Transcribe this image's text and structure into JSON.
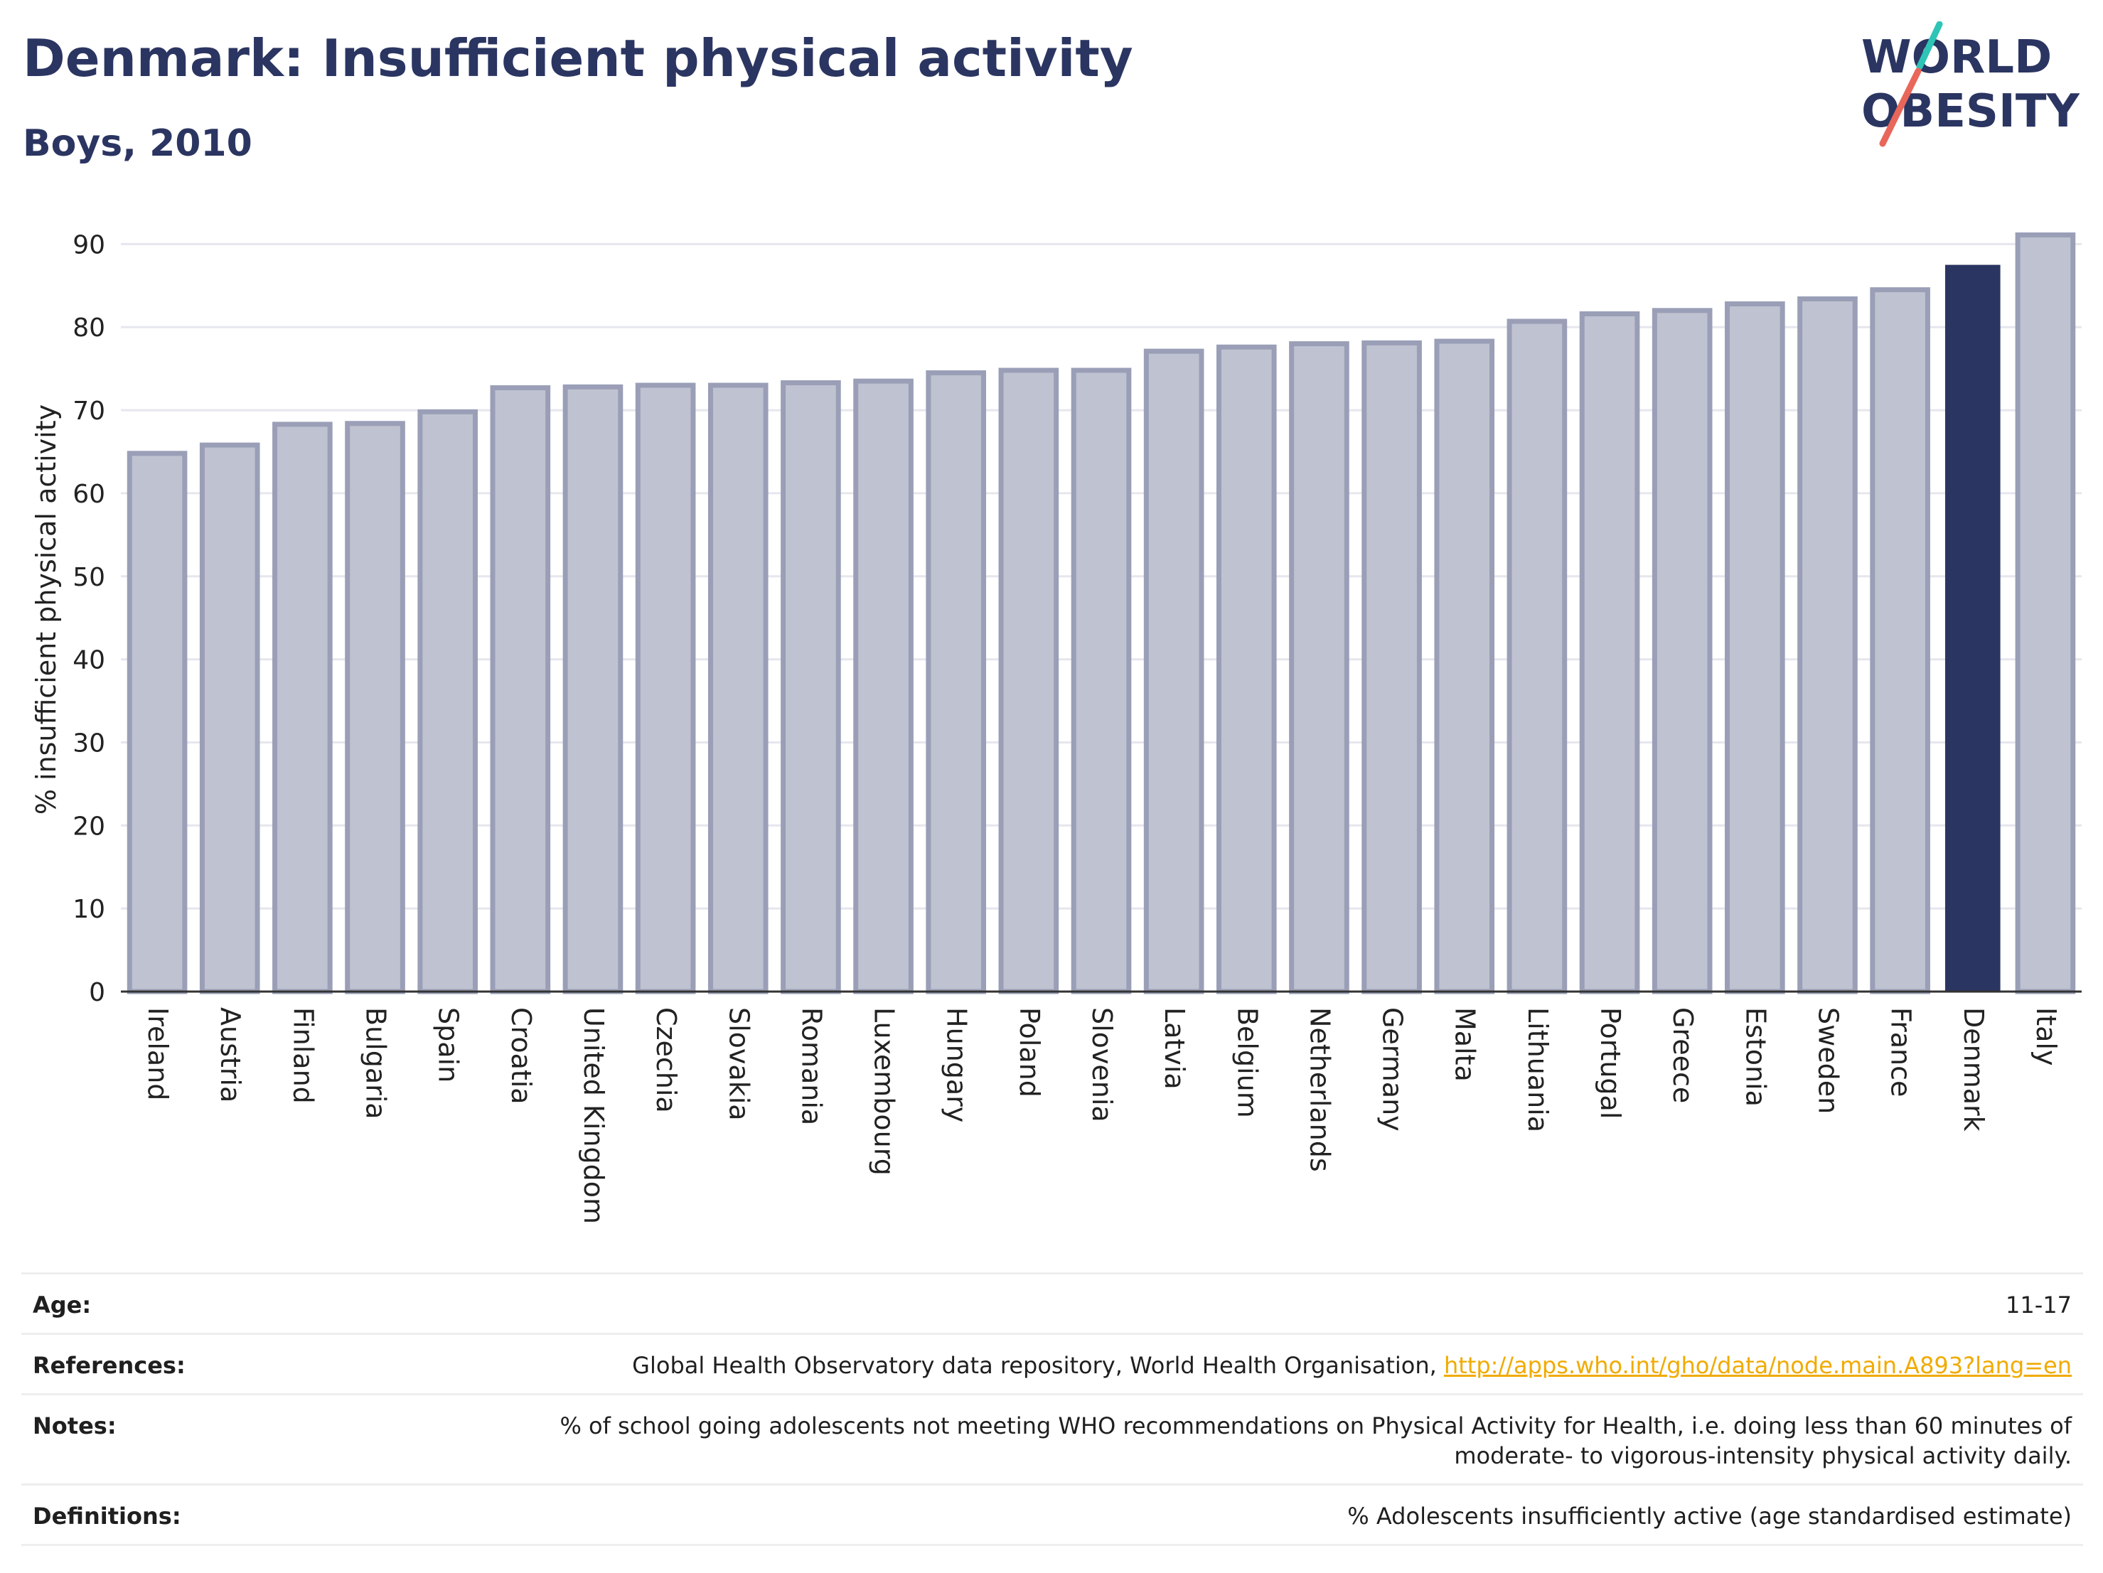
{
  "header": {
    "title": "Denmark: Insufficient physical activity",
    "subtitle": "Boys, 2010"
  },
  "logo": {
    "line1": "WORLD",
    "line2": "OBESITY"
  },
  "chart_data": {
    "type": "bar",
    "title": "Denmark: Insufficient physical activity",
    "subtitle": "Boys, 2010",
    "xlabel": "",
    "ylabel": "% insufficient physical activity",
    "ylim": [
      0,
      92
    ],
    "yticks": [
      0,
      10,
      20,
      30,
      40,
      50,
      60,
      70,
      80,
      90
    ],
    "grid": true,
    "highlight": "Denmark",
    "colors": {
      "bar": "#bfc2d0",
      "bar_edge": "#9a9fb7",
      "highlight": "#2b3561",
      "grid": "#e6e6ee",
      "axis": "#333333"
    },
    "categories": [
      "Ireland",
      "Austria",
      "Finland",
      "Bulgaria",
      "Spain",
      "Croatia",
      "United Kingdom",
      "Czechia",
      "Slovakia",
      "Romania",
      "Luxembourg",
      "Hungary",
      "Poland",
      "Slovenia",
      "Latvia",
      "Belgium",
      "Netherlands",
      "Germany",
      "Malta",
      "Lithuania",
      "Portugal",
      "Greece",
      "Estonia",
      "Sweden",
      "France",
      "Denmark",
      "Italy"
    ],
    "values": [
      64.8,
      65.8,
      68.3,
      68.4,
      69.8,
      72.7,
      72.8,
      73.0,
      73.0,
      73.3,
      73.5,
      74.5,
      74.8,
      74.8,
      77.1,
      77.6,
      78.0,
      78.1,
      78.3,
      80.7,
      81.6,
      82.0,
      82.8,
      83.4,
      84.5,
      87.5,
      91.1
    ]
  },
  "meta": {
    "age_label": "Age:",
    "age_value": "11-17",
    "references_label": "References:",
    "references_text": "Global Health Observatory data repository, World Health Organisation, ",
    "references_link": "http://apps.who.int/gho/data/node.main.A893?lang=en",
    "notes_label": "Notes:",
    "notes_value": "% of school going adolescents not meeting WHO recommendations on Physical Activity for Health, i.e. doing less than 60 minutes of moderate- to vigorous-intensity physical activity daily.",
    "definitions_label": "Definitions:",
    "definitions_value": "% Adolescents insufficiently active (age standardised estimate)"
  }
}
